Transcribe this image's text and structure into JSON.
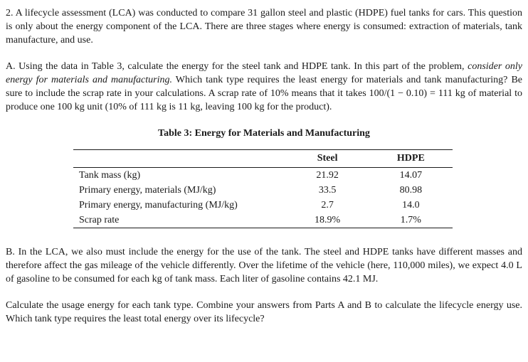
{
  "intro": {
    "paragraph": "2. A lifecycle assessment (LCA) was conducted to compare 31 gallon steel and plastic (HDPE) fuel tanks for cars.  This question is only about the energy component of the LCA. There are three stages where energy is consumed: extraction of materials, tank manufacture, and use."
  },
  "part_a": {
    "before_italic": "A. Using the data in Table 3, calculate the energy for the steel tank and HDPE tank. In this part of the problem,",
    "italic": "consider only energy for materials and manufacturing.",
    "after_italic": "Which tank type requires the least energy for materials and tank manufacturing? Be sure to include the scrap rate in your calculations. A scrap rate of 10% means that it takes 100/(1 − 0.10) = 111 kg of material to produce one 100 kg unit (10% of 111 kg is 11 kg, leaving 100 kg for the product)."
  },
  "table": {
    "title": "Table 3: Energy for Materials and Manufacturing",
    "columns": [
      "",
      "Steel",
      "HDPE"
    ],
    "rows": [
      {
        "label": "Tank mass (kg)",
        "steel": "21.92",
        "hdpe": "14.07"
      },
      {
        "label": "Primary energy, materials (MJ/kg)",
        "steel": "33.5",
        "hdpe": "80.98"
      },
      {
        "label": "Primary energy, manufacturing (MJ/kg)",
        "steel": "2.7",
        "hdpe": "14.0"
      },
      {
        "label": "Scrap rate",
        "steel": "18.9%",
        "hdpe": "1.7%"
      }
    ]
  },
  "part_b": {
    "paragraph": "B. In the LCA, we also must include the energy for the use of the tank. The steel and HDPE tanks have different masses and therefore affect the gas mileage of the vehicle differently. Over the lifetime of the vehicle (here, 110,000 miles), we expect 4.0 L of gasoline to be consumed for each kg of tank mass. Each liter of gasoline contains 42.1 MJ."
  },
  "closing": {
    "paragraph": "Calculate the usage energy for each tank type. Combine your answers from Parts A and B to calculate the lifecycle energy use. Which tank type requires the least total energy over its lifecycle?"
  }
}
